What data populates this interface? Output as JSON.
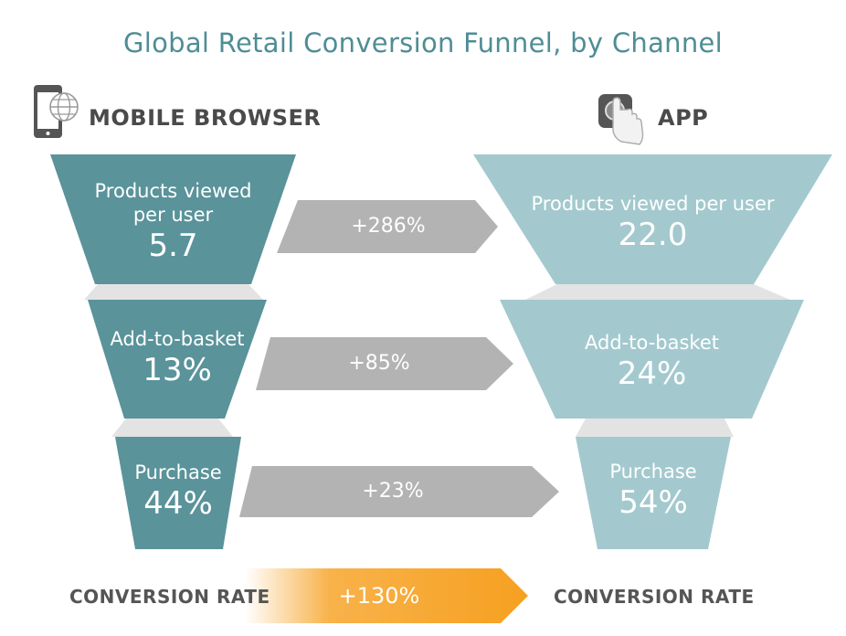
{
  "title": "Global Retail Conversion Funnel, by Channel",
  "colors": {
    "mobile": "#5a939a",
    "app": "#a3c9ce",
    "arrow": "#b3b3b3",
    "connector": "#e3e3e3",
    "conversion_arrow": "#f6a020"
  },
  "mobile": {
    "channel_label": "MOBILE BROWSER",
    "icon": "smartphone-globe-icon",
    "stages": [
      {
        "label_line1": "Products viewed",
        "label_line2": "per user",
        "value": "5.7"
      },
      {
        "label_line1": "Add-to-basket",
        "label_line2": "",
        "value": "13%"
      },
      {
        "label_line1": "Purchase",
        "label_line2": "",
        "value": "44%"
      }
    ]
  },
  "app": {
    "channel_label": "APP",
    "icon": "app-tap-icon",
    "stages": [
      {
        "label_line1": "Products viewed per user",
        "value": "22.0"
      },
      {
        "label_line1": "Add-to-basket",
        "value": "24%"
      },
      {
        "label_line1": "Purchase",
        "value": "54%"
      }
    ]
  },
  "differences": [
    "+286%",
    "+85%",
    "+23%"
  ],
  "conversion": {
    "left_label": "CONVERSION RATE",
    "right_label": "CONVERSION RATE",
    "change": "+130%"
  }
}
